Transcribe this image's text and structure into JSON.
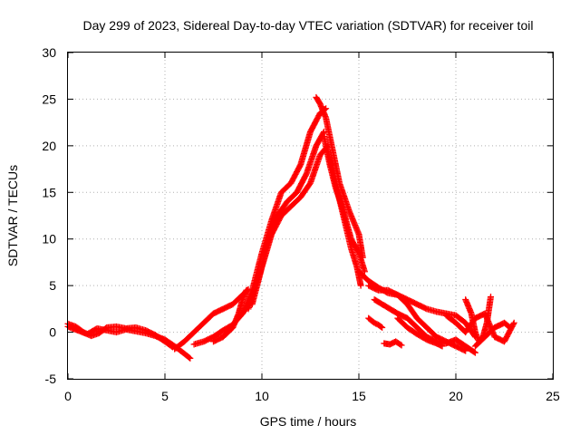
{
  "chart_data": {
    "type": "scatter",
    "title": "Day 299 of 2023, Sidereal Day-to-day VTEC variation (SDTVAR) for receiver toil",
    "xlabel": "GPS time / hours",
    "ylabel": "SDTVAR / TECUs",
    "xlim": [
      0,
      25
    ],
    "ylim": [
      -5,
      30
    ],
    "xticks": [
      0,
      5,
      10,
      15,
      20,
      25
    ],
    "yticks": [
      -5,
      0,
      5,
      10,
      15,
      20,
      25,
      30
    ],
    "grid": true,
    "marker": "+",
    "series": [
      {
        "name": "SDTVAR",
        "color": "#ff0000",
        "tracks": [
          {
            "x": [
              0.0,
              0.5,
              1.0,
              1.5,
              2.0,
              2.5,
              3.0,
              3.5,
              4.0,
              4.5,
              5.0,
              5.5,
              6.0,
              6.3
            ],
            "y": [
              0.6,
              0.2,
              -0.2,
              0.4,
              0.2,
              0.0,
              0.3,
              0.1,
              -0.1,
              -0.4,
              -0.8,
              -1.5,
              -2.3,
              -2.8
            ]
          },
          {
            "x": [
              0.0,
              0.4,
              0.8,
              1.2,
              1.6,
              2.0,
              2.5,
              3.0,
              3.5,
              4.0,
              4.5,
              5.0,
              5.4
            ],
            "y": [
              0.9,
              0.6,
              0.0,
              -0.4,
              -0.1,
              0.5,
              0.6,
              0.4,
              0.5,
              0.2,
              -0.3,
              -1.0,
              -1.6
            ]
          },
          {
            "x": [
              5.5,
              6.0,
              6.5,
              7.0,
              7.5,
              8.0,
              8.5,
              9.0,
              9.3
            ],
            "y": [
              -1.8,
              -1.0,
              0.0,
              1.0,
              2.0,
              2.5,
              3.0,
              4.0,
              4.6
            ]
          },
          {
            "x": [
              6.5,
              7.0,
              7.5,
              8.0,
              8.5,
              9.0,
              9.5
            ],
            "y": [
              -1.3,
              -1.0,
              -0.5,
              0.2,
              0.8,
              2.0,
              3.5
            ]
          },
          {
            "x": [
              7.5,
              8.0,
              8.5,
              8.8,
              9.0,
              9.2
            ],
            "y": [
              -1.0,
              -0.5,
              0.5,
              2.0,
              3.5,
              4.5
            ]
          },
          {
            "x": [
              9.0,
              9.5,
              10.0,
              10.5,
              11.0,
              11.5,
              12.0,
              12.5,
              13.0,
              13.3
            ],
            "y": [
              2.0,
              4.5,
              8.5,
              12.0,
              15.0,
              16.0,
              18.0,
              21.5,
              23.5,
              24.0
            ]
          },
          {
            "x": [
              9.3,
              9.8,
              10.3,
              10.8,
              11.3,
              11.8,
              12.3,
              12.8,
              13.2
            ],
            "y": [
              2.5,
              5.5,
              9.5,
              12.5,
              14.0,
              15.0,
              17.0,
              20.0,
              21.5
            ]
          },
          {
            "x": [
              9.5,
              10.0,
              10.5,
              11.0,
              11.5,
              12.0,
              12.5,
              13.0,
              13.4
            ],
            "y": [
              3.0,
              7.0,
              10.5,
              12.5,
              13.5,
              14.5,
              16.0,
              19.0,
              20.0
            ]
          },
          {
            "x": [
              12.8,
              13.0,
              13.3,
              13.6,
              14.0,
              14.5,
              15.0,
              15.2
            ],
            "y": [
              25.2,
              24.5,
              23.0,
              20.0,
              16.0,
              13.0,
              10.5,
              8.0
            ]
          },
          {
            "x": [
              13.2,
              13.5,
              13.8,
              14.2,
              14.6,
              15.0,
              15.3
            ],
            "y": [
              21.0,
              18.0,
              15.5,
              13.0,
              10.0,
              8.5,
              6.5
            ]
          },
          {
            "x": [
              13.4,
              13.8,
              14.2,
              14.6,
              14.9,
              15.1
            ],
            "y": [
              19.5,
              16.0,
              12.5,
              9.0,
              7.0,
              5.0
            ]
          },
          {
            "x": [
              15.0,
              15.5,
              16.0,
              16.5,
              17.0,
              17.5,
              18.0,
              18.5,
              19.0,
              19.5,
              20.0,
              20.5,
              21.0
            ],
            "y": [
              6.5,
              5.5,
              4.8,
              4.2,
              4.0,
              3.5,
              3.0,
              2.5,
              2.2,
              2.0,
              1.8,
              1.0,
              -0.5
            ]
          },
          {
            "x": [
              15.5,
              16.0,
              16.5,
              17.0,
              17.5,
              18.0,
              18.5,
              19.0,
              19.5,
              20.0,
              20.5
            ],
            "y": [
              5.0,
              4.5,
              4.5,
              4.0,
              3.0,
              1.5,
              0.5,
              -0.5,
              -1.0,
              -1.5,
              -2.0
            ]
          },
          {
            "x": [
              15.8,
              16.2,
              16.6,
              17.0,
              17.5,
              18.0,
              18.5,
              19.0,
              19.5,
              20.0,
              20.5,
              21.0
            ],
            "y": [
              3.5,
              3.0,
              2.5,
              2.0,
              1.5,
              0.5,
              -0.5,
              -1.0,
              -1.2,
              -0.8,
              -1.5,
              -2.2
            ]
          },
          {
            "x": [
              15.5,
              15.8,
              16.0,
              16.2
            ],
            "y": [
              1.5,
              1.0,
              0.8,
              0.5
            ]
          },
          {
            "x": [
              16.3,
              16.6,
              16.9,
              17.2
            ],
            "y": [
              -1.2,
              -1.3,
              -1.0,
              -1.4
            ]
          },
          {
            "x": [
              17.0,
              17.5,
              18.0,
              18.5,
              19.0,
              19.3
            ],
            "y": [
              1.5,
              0.5,
              -0.2,
              -0.8,
              -1.2,
              -1.5
            ]
          },
          {
            "x": [
              19.5,
              20.0,
              20.5,
              21.0,
              21.5,
              22.0,
              22.5,
              23.0
            ],
            "y": [
              1.8,
              1.0,
              0.0,
              1.5,
              2.0,
              -0.5,
              -1.0,
              1.0
            ]
          },
          {
            "x": [
              20.5,
              20.8,
              21.0,
              21.2,
              21.4,
              21.6,
              21.8
            ],
            "y": [
              3.5,
              2.0,
              0.0,
              -1.0,
              -0.5,
              1.0,
              3.8
            ]
          },
          {
            "x": [
              21.0,
              21.5,
              22.0,
              22.5,
              22.8
            ],
            "y": [
              -1.5,
              -0.5,
              0.5,
              1.0,
              0.5
            ]
          }
        ]
      }
    ]
  }
}
